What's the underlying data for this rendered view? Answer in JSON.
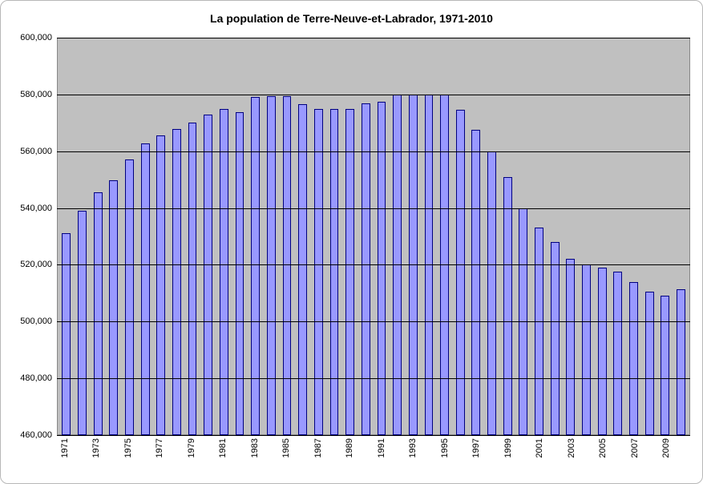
{
  "chart": {
    "type": "bar",
    "title": "La population de Terre-Neuve-et-Labrador, 1971-2010",
    "title_fontsize": 14,
    "title_fontweight": "bold",
    "background_color": "#ffffff",
    "plot_background_color": "#c0c0c0",
    "grid_color": "#000000",
    "axis_color": "#888888",
    "frame_border_color": "#b8b8b8",
    "bar_fill_color": "#9999ff",
    "bar_border_color": "#000080",
    "bar_width_ratio": 0.55,
    "label_fontsize": 11,
    "ylim": [
      460000,
      600000
    ],
    "ytick_step": 20000,
    "yticks": [
      460000,
      480000,
      500000,
      520000,
      540000,
      560000,
      580000,
      600000
    ],
    "ytick_labels": [
      "460,000",
      "480,000",
      "500,000",
      "520,000",
      "540,000",
      "560,000",
      "580,000",
      "600,000"
    ],
    "xtick_step": 2,
    "xtick_rotation_deg": -90,
    "years": [
      1971,
      1972,
      1973,
      1974,
      1975,
      1976,
      1977,
      1978,
      1979,
      1980,
      1981,
      1982,
      1983,
      1984,
      1985,
      1986,
      1987,
      1988,
      1989,
      1990,
      1991,
      1992,
      1993,
      1994,
      1995,
      1996,
      1997,
      1998,
      1999,
      2000,
      2001,
      2002,
      2003,
      2004,
      2005,
      2006,
      2007,
      2008,
      2009,
      2010
    ],
    "values": [
      531000,
      539000,
      545500,
      549800,
      557000,
      562800,
      565500,
      567800,
      570200,
      572800,
      575000,
      573700,
      579000,
      579500,
      579500,
      576700,
      574800,
      575000,
      575000,
      577000,
      577500,
      580000,
      580000,
      580000,
      580000,
      574500,
      567500,
      560000,
      551000,
      540000,
      533000,
      528000,
      522000,
      520000,
      519000,
      517500,
      514000,
      510500,
      506000,
      506000
    ],
    "values_tail": {
      "2009_alt": 509000,
      "2010_alt": 511500
    },
    "x_visible_labels": [
      1971,
      1973,
      1975,
      1977,
      1979,
      1981,
      1983,
      1985,
      1987,
      1989,
      1991,
      1993,
      1995,
      1997,
      1999,
      2001,
      2003,
      2005,
      2007,
      2009
    ]
  }
}
